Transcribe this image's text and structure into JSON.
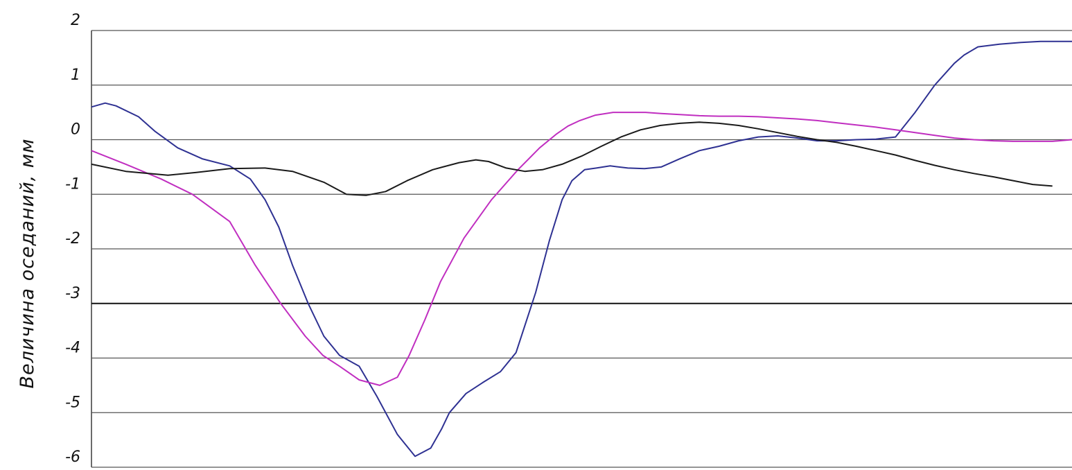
{
  "chart_data": {
    "type": "line",
    "title": "",
    "xlabel": "",
    "ylabel": "Величина оседаний, мм",
    "ylim": [
      -6,
      2
    ],
    "xlim": [
      0,
      100
    ],
    "yticks": [
      2,
      1,
      0,
      -1,
      -2,
      -3,
      -4,
      -5,
      -6
    ],
    "ytick_labels": [
      "2",
      "1",
      "0",
      "-1",
      "-2",
      "-3",
      "-4",
      "-5",
      "-6"
    ],
    "emphasized_gridline": -3,
    "grid": true,
    "legend": "none",
    "series": [
      {
        "color": "#2e3192",
        "x": [
          0,
          1.4,
          2.5,
          4.8,
          6.5,
          8.8,
          11.3,
          14.1,
          16.2,
          17.7,
          19.1,
          20.5,
          22.1,
          23.7,
          25.3,
          27.3,
          29.1,
          31.2,
          33.0,
          34.6,
          35.7,
          36.5,
          38.2,
          39.9,
          41.7,
          43.3,
          45.3,
          46.7,
          48.0,
          49.0,
          50.3,
          51.5,
          52.9,
          54.7,
          56.4,
          58.1,
          60.0,
          62.0,
          64.0,
          66.0,
          68.0,
          70.0,
          72.0,
          74.0,
          76.0,
          78.0,
          80.0,
          82.0,
          84.0,
          86.0,
          88.0,
          89.0,
          90.4,
          92.6,
          94.8,
          96.8,
          98.6,
          100.0
        ],
        "y": [
          0.6,
          0.67,
          0.62,
          0.42,
          0.15,
          -0.15,
          -0.35,
          -0.48,
          -0.72,
          -1.1,
          -1.6,
          -2.3,
          -3.0,
          -3.6,
          -3.95,
          -4.15,
          -4.7,
          -5.4,
          -5.8,
          -5.65,
          -5.3,
          -5.0,
          -4.65,
          -4.45,
          -4.25,
          -3.9,
          -2.8,
          -1.85,
          -1.1,
          -0.75,
          -0.55,
          -0.52,
          -0.48,
          -0.52,
          -0.53,
          -0.5,
          -0.35,
          -0.2,
          -0.12,
          -0.02,
          0.05,
          0.07,
          0.03,
          -0.02,
          -0.02,
          0.0,
          0.01,
          0.05,
          0.5,
          1.0,
          1.4,
          1.55,
          1.7,
          1.75,
          1.78,
          1.8,
          1.8,
          1.8
        ],
        "name": ""
      },
      {
        "color": "#c02ec0",
        "x": [
          0,
          3.5,
          7.1,
          10.3,
          14.1,
          16.7,
          19.3,
          21.8,
          23.6,
          25.3,
          27.3,
          29.4,
          31.2,
          32.4,
          34.0,
          35.6,
          38.0,
          40.8,
          43.5,
          45.7,
          47.4,
          48.6,
          49.8,
          51.4,
          53.2,
          55.0,
          56.5,
          58.1,
          60.0,
          62.0,
          64.0,
          66.0,
          68.0,
          70.0,
          72.0,
          74.0,
          76.0,
          78.0,
          80.0,
          82.0,
          84.0,
          86.0,
          88.0,
          90.0,
          92.0,
          94.0,
          96.0,
          98.0,
          100.0
        ],
        "y": [
          -0.2,
          -0.45,
          -0.72,
          -1.0,
          -1.5,
          -2.3,
          -3.0,
          -3.6,
          -3.95,
          -4.15,
          -4.4,
          -4.5,
          -4.35,
          -3.95,
          -3.3,
          -2.6,
          -1.8,
          -1.1,
          -0.55,
          -0.15,
          0.1,
          0.25,
          0.35,
          0.45,
          0.5,
          0.5,
          0.5,
          0.48,
          0.46,
          0.44,
          0.43,
          0.43,
          0.42,
          0.4,
          0.38,
          0.35,
          0.31,
          0.27,
          0.23,
          0.18,
          0.13,
          0.08,
          0.03,
          0.0,
          -0.02,
          -0.03,
          -0.03,
          -0.03,
          0.0
        ],
        "name": ""
      },
      {
        "color": "#1a1a1a",
        "x": [
          0,
          3.5,
          7.8,
          10.7,
          14.1,
          17.7,
          20.5,
          23.7,
          26.0,
          28.0,
          30.0,
          32.2,
          34.8,
          37.5,
          39.2,
          40.5,
          42.3,
          44.2,
          46.0,
          48.0,
          50.0,
          52.0,
          54.0,
          56.0,
          58.0,
          60.0,
          62.0,
          64.0,
          66.0,
          68.0,
          70.0,
          72.0,
          74.0,
          76.0,
          78.0,
          80.0,
          82.0,
          84.0,
          86.0,
          88.0,
          90.0,
          92.0,
          94.0,
          96.0,
          98.0
        ],
        "y": [
          -0.45,
          -0.58,
          -0.65,
          -0.6,
          -0.53,
          -0.52,
          -0.58,
          -0.78,
          -1.0,
          -1.02,
          -0.95,
          -0.75,
          -0.55,
          -0.42,
          -0.37,
          -0.4,
          -0.52,
          -0.58,
          -0.55,
          -0.45,
          -0.3,
          -0.12,
          0.05,
          0.18,
          0.26,
          0.3,
          0.32,
          0.3,
          0.26,
          0.2,
          0.13,
          0.06,
          0.0,
          -0.05,
          -0.12,
          -0.2,
          -0.28,
          -0.38,
          -0.47,
          -0.55,
          -0.62,
          -0.68,
          -0.75,
          -0.82,
          -0.85
        ],
        "name": ""
      }
    ]
  }
}
